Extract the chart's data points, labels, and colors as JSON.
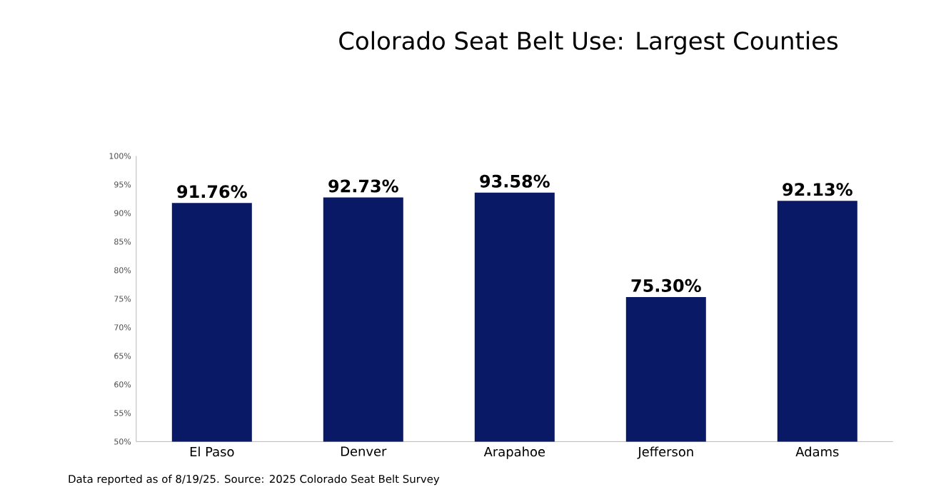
{
  "chart_data": {
    "type": "bar",
    "title": "Colorado Seat Belt Use: Largest Counties",
    "categories": [
      "El Paso",
      "Denver",
      "Arapahoe",
      "Jefferson",
      "Adams"
    ],
    "values": [
      91.76,
      92.73,
      93.58,
      75.3,
      92.13
    ],
    "value_labels": [
      "91.76%",
      "92.73%",
      "93.58%",
      "75.30%",
      "92.13%"
    ],
    "color": "#0a1966",
    "ylim": [
      50,
      100
    ],
    "yticks": [
      {
        "value": 50,
        "label": "50%"
      },
      {
        "value": 55,
        "label": "55%"
      },
      {
        "value": 60,
        "label": "60%"
      },
      {
        "value": 65,
        "label": "65%"
      },
      {
        "value": 70,
        "label": "70%"
      },
      {
        "value": 75,
        "label": "75%"
      },
      {
        "value": 80,
        "label": "80%"
      },
      {
        "value": 85,
        "label": "85%"
      },
      {
        "value": 90,
        "label": "90%"
      },
      {
        "value": 95,
        "label": "95%"
      },
      {
        "value": 100,
        "label": "100%"
      }
    ],
    "annotations": [
      "Data reported as of 8/19/25. Source: 2025 Colorado Seat Belt Survey"
    ]
  }
}
